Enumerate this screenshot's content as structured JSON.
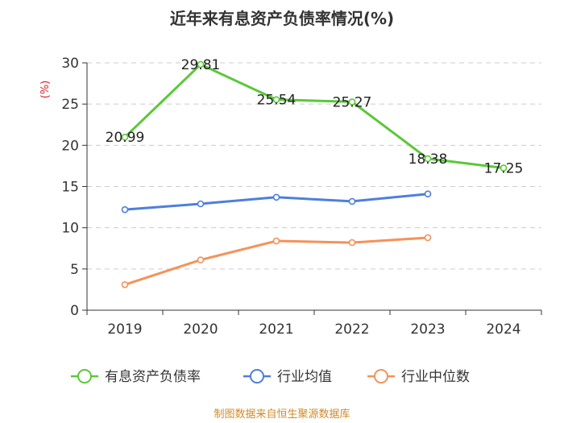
{
  "title": "近年来有息资产负债率情况(%)",
  "source": "制图数据来自恒生聚源数据库",
  "chart_data": {
    "type": "line",
    "title": "近年来有息资产负债率情况(%)",
    "ylabel": "(%)",
    "xlabel": "",
    "categories": [
      "2019",
      "2020",
      "2021",
      "2022",
      "2023",
      "2024"
    ],
    "ylim": [
      0,
      30
    ],
    "yticks": [
      0,
      5,
      10,
      15,
      20,
      25,
      30
    ],
    "grid": true,
    "legend_position": "bottom",
    "series": [
      {
        "name": "有息资产负债率",
        "color": "#5ac83a",
        "values": [
          20.99,
          29.81,
          25.54,
          25.27,
          18.38,
          17.25
        ],
        "labels": [
          "20.99",
          "29.81",
          "25.54",
          "25.27",
          "18.38",
          "17.25"
        ]
      },
      {
        "name": "行业均值",
        "color": "#4e7fdc",
        "values": [
          12.2,
          12.9,
          13.7,
          13.2,
          14.1,
          null
        ],
        "labels": []
      },
      {
        "name": "行业中位数",
        "color": "#f5925a",
        "values": [
          3.1,
          6.1,
          8.4,
          8.2,
          8.8,
          null
        ],
        "labels": []
      }
    ]
  }
}
